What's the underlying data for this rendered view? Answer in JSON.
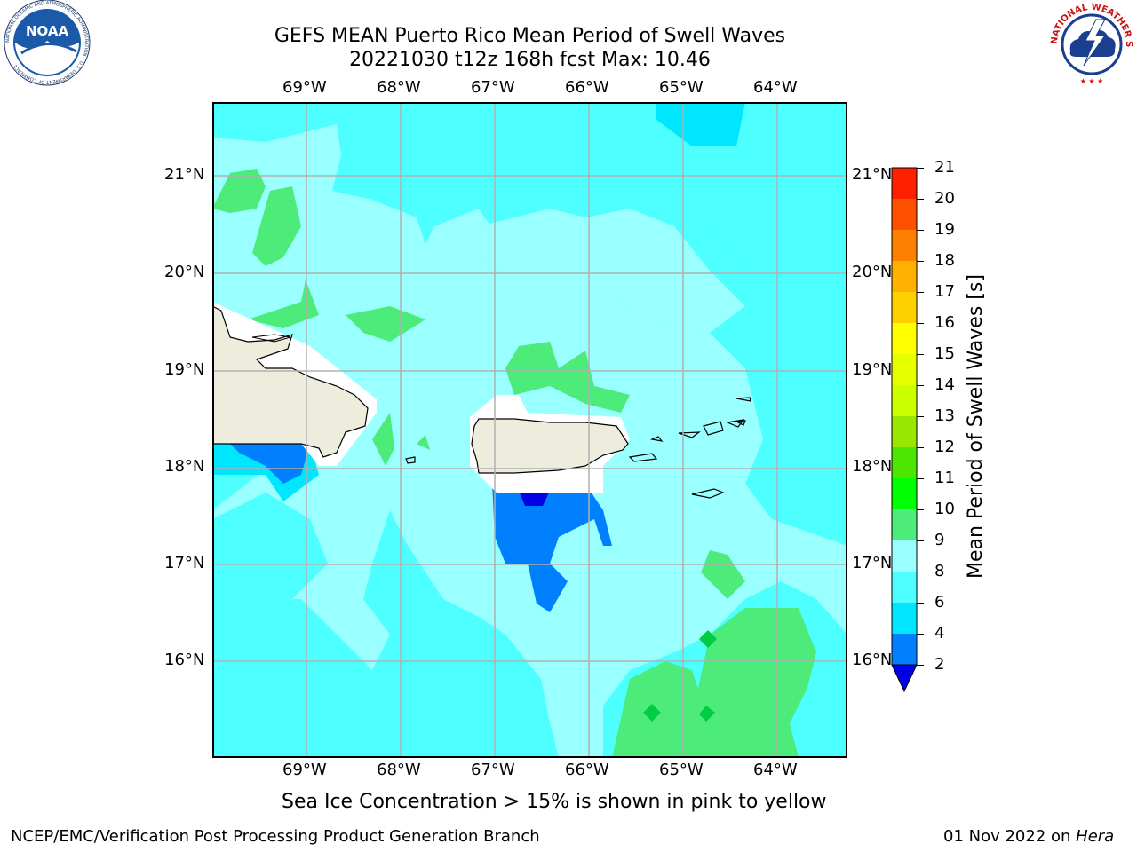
{
  "header": {
    "title_line1": "GEFS MEAN Puerto Rico Mean Period of Swell Waves",
    "title_line2": "20221030 t12z 168h fcst   Max: 10.46"
  },
  "map": {
    "lon_labels": [
      "69°W",
      "68°W",
      "67°W",
      "66°W",
      "65°W",
      "64°W"
    ],
    "lat_labels": [
      "21°N",
      "20°N",
      "19°N",
      "18°N",
      "17°N",
      "16°N"
    ],
    "land_color": "#eeecdc",
    "grid_color": "#b0b0b0"
  },
  "colorbar": {
    "label": "Mean Period of Swell Waves [s]",
    "ticks": [
      "2",
      "4",
      "6",
      "8",
      "9",
      "10",
      "11",
      "12",
      "13",
      "14",
      "15",
      "16",
      "17",
      "18",
      "19",
      "20",
      "21"
    ],
    "colors": [
      "#0000e6",
      "#0080ff",
      "#00e6ff",
      "#4dffff",
      "#99ffff",
      "#4deb7a",
      "#00ff00",
      "#4de600",
      "#99e600",
      "#ccff00",
      "#e6ff00",
      "#ffff00",
      "#ffd000",
      "#ffb000",
      "#ff8000",
      "#ff5000",
      "#ff2000",
      "#ff0000"
    ]
  },
  "logos": {
    "left_text": "NOAA",
    "left_ring_text": "NATIONAL OCEANIC AND ATMOSPHERIC ADMINISTRATION • U.S. DEPARTMENT OF COMMERCE",
    "right_ring_text": "NATIONAL WEATHER SERVICE"
  },
  "footer": {
    "sea_ice_note": "Sea Ice Concentration > 15% is shown in pink to yellow",
    "left": "NCEP/EMC/Verification Post Processing Product Generation Branch",
    "right_date": "01 Nov 2022 on ",
    "right_machine": "Hera"
  }
}
